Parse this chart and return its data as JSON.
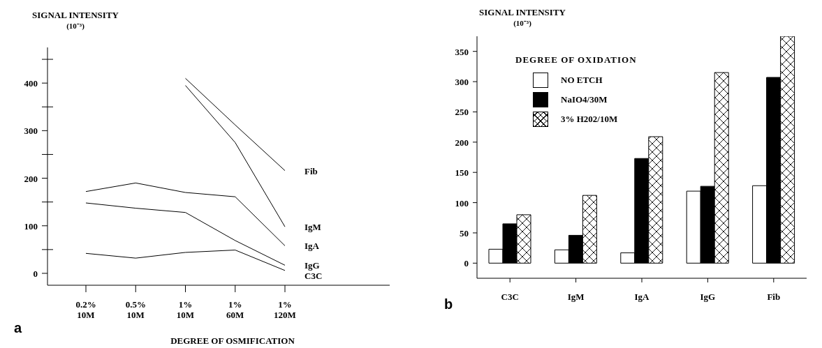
{
  "chart_data": [
    {
      "type": "line",
      "ylabel": "SIGNAL INTENSITY (10⁻³)",
      "xlabel": "DEGREE OF OSMIFICATION",
      "annotations": [
        "a"
      ],
      "categories": [
        "0.2%\n10M",
        "0.5%\n10M",
        "1%\n10M",
        "1%\n60M",
        "1%\n120M"
      ],
      "series": [
        {
          "name": "Fib",
          "color": "#000000",
          "values": [
            null,
            null,
            410,
            312,
            216
          ]
        },
        {
          "name": "IgM",
          "color": "#000000",
          "values": [
            null,
            null,
            395,
            275,
            98
          ]
        },
        {
          "name": "IgA",
          "color": "#000000",
          "values": [
            172,
            190,
            170,
            161,
            58
          ]
        },
        {
          "name": "IgG",
          "color": "#000000",
          "values": [
            148,
            137,
            128,
            69,
            17
          ]
        },
        {
          "name": "C3C",
          "color": "#000000",
          "values": [
            42,
            32,
            44,
            49,
            6
          ]
        }
      ],
      "ylim": [
        -25,
        475
      ],
      "yticks": [
        0,
        {
          "value": 50,
          "label": null
        },
        100,
        {
          "value": 150,
          "label": null
        },
        200,
        {
          "value": 250,
          "label": null
        },
        300,
        {
          "value": 350,
          "label": null
        },
        400,
        {
          "value": 450,
          "label": null
        }
      ],
      "marker": "none",
      "line_style": "solid"
    },
    {
      "type": "bar",
      "ylabel": "SIGNAL INTENSITY (10⁻³)",
      "annotations": [
        "b"
      ],
      "legend_title": "DEGREE OF OXIDATION",
      "categories": [
        "C3C",
        "IgM",
        "IgA",
        "IgG",
        "Fib"
      ],
      "series": [
        {
          "name": "NO ETCH",
          "color": "#ffffff",
          "values": [
            23,
            22,
            17,
            119,
            128
          ]
        },
        {
          "name": "NaIO4/30M",
          "color": "#000000",
          "values": [
            65,
            46,
            173,
            127,
            307
          ]
        },
        {
          "name": "3% H202/10M",
          "color": "#000000",
          "values": [
            80,
            112,
            209,
            315,
            375
          ]
        }
      ],
      "ylim": [
        -25,
        375
      ],
      "yticks": [
        0,
        50,
        100,
        150,
        200,
        250,
        300,
        350
      ],
      "legend": "top left"
    }
  ]
}
